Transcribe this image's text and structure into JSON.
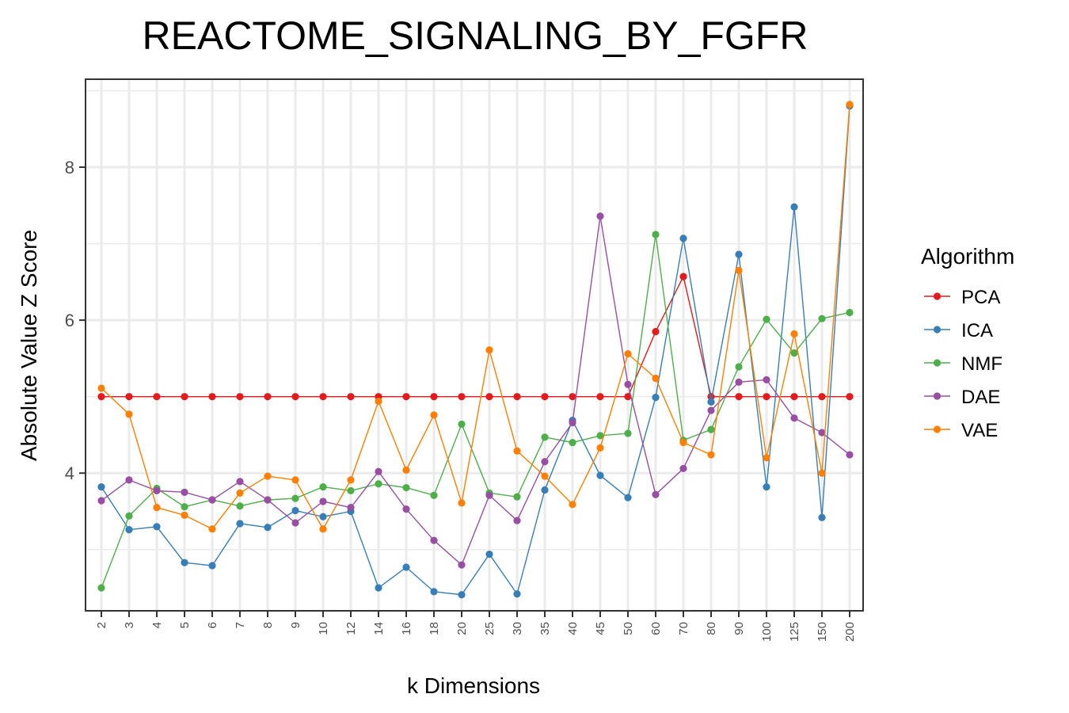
{
  "chart_data": {
    "type": "line",
    "title": "REACTOME_SIGNALING_BY_FGFR",
    "xlabel": "k Dimensions",
    "ylabel": "Absolute Value Z Score",
    "ylim": [
      2.2,
      9.15
    ],
    "yticks": [
      4,
      6,
      8
    ],
    "categories": [
      "2",
      "3",
      "4",
      "5",
      "6",
      "7",
      "8",
      "9",
      "10",
      "12",
      "14",
      "16",
      "18",
      "20",
      "25",
      "30",
      "35",
      "40",
      "45",
      "50",
      "60",
      "70",
      "80",
      "90",
      "100",
      "125",
      "150",
      "200"
    ],
    "legend": {
      "title": "Algorithm",
      "placement": "right"
    },
    "grid": true,
    "series": [
      {
        "name": "PCA",
        "color": "#e41a1c",
        "values": [
          5.0,
          5.0,
          5.0,
          5.0,
          5.0,
          5.0,
          5.0,
          5.0,
          5.0,
          5.0,
          5.0,
          5.0,
          5.0,
          5.0,
          5.0,
          5.0,
          5.0,
          5.0,
          5.0,
          5.0,
          5.85,
          6.57,
          5.0,
          5.0,
          5.0,
          5.0,
          5.0,
          5.0
        ]
      },
      {
        "name": "ICA",
        "color": "#377eb8",
        "values": [
          3.82,
          3.26,
          3.3,
          2.83,
          2.79,
          3.34,
          3.29,
          3.51,
          3.43,
          3.5,
          2.5,
          2.77,
          2.45,
          2.41,
          2.94,
          2.42,
          3.78,
          4.69,
          3.97,
          3.68,
          4.99,
          7.07,
          4.93,
          6.86,
          3.82,
          7.48,
          3.42,
          8.8
        ]
      },
      {
        "name": "NMF",
        "color": "#4daf4a",
        "values": [
          2.5,
          3.44,
          3.8,
          3.56,
          3.65,
          3.57,
          3.65,
          3.67,
          3.82,
          3.77,
          3.86,
          3.81,
          3.71,
          4.64,
          3.74,
          3.69,
          4.47,
          4.4,
          4.49,
          4.52,
          7.12,
          4.43,
          4.57,
          5.39,
          6.01,
          5.57,
          6.02,
          6.1
        ]
      },
      {
        "name": "DAE",
        "color": "#984ea3",
        "values": [
          3.64,
          3.91,
          3.77,
          3.75,
          3.65,
          3.89,
          3.65,
          3.35,
          3.63,
          3.55,
          4.02,
          3.53,
          3.12,
          2.8,
          3.71,
          3.38,
          4.15,
          4.66,
          7.36,
          5.16,
          3.72,
          4.06,
          4.82,
          5.19,
          5.22,
          4.72,
          4.53,
          4.24
        ]
      },
      {
        "name": "VAE",
        "color": "#ff7f00",
        "values": [
          5.11,
          4.77,
          3.55,
          3.45,
          3.27,
          3.74,
          3.96,
          3.91,
          3.27,
          3.91,
          4.94,
          4.04,
          4.76,
          3.61,
          5.61,
          4.29,
          3.96,
          3.59,
          4.33,
          5.56,
          5.24,
          4.4,
          4.24,
          6.65,
          4.2,
          5.82,
          4.0,
          8.82
        ]
      }
    ]
  }
}
